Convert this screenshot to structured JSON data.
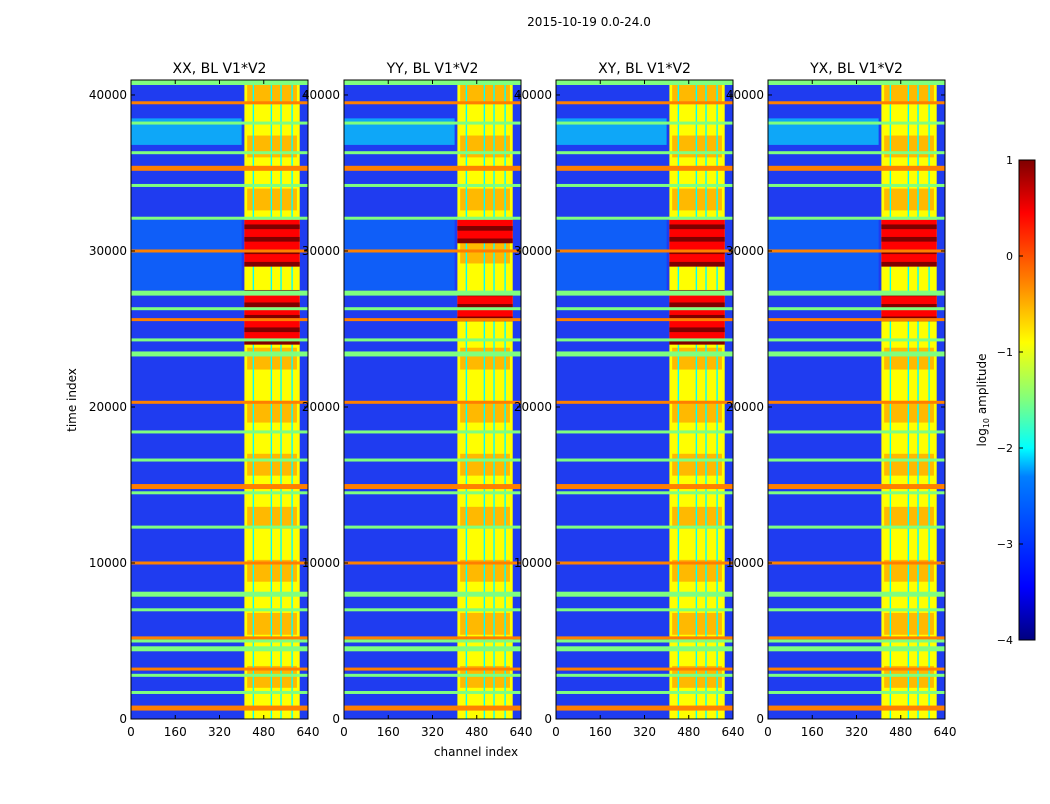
{
  "figure": {
    "suptitle": "2015-10-19 0.0-24.0",
    "ylabel": "time index",
    "xlabel": "channel index"
  },
  "colors": {
    "jet": [
      "#00007f",
      "#0000ff",
      "#007fff",
      "#00ffff",
      "#7fff7f",
      "#ffff00",
      "#ff7f00",
      "#ff0000",
      "#7f0000"
    ],
    "background": "#1f3cf0"
  },
  "chart_data": {
    "type": "heatmap",
    "shared": {
      "x_range": [
        0,
        640
      ],
      "y_range": [
        0,
        40960
      ],
      "x_ticks": [
        0,
        160,
        320,
        480,
        640
      ],
      "x_tick_labels": [
        "0",
        "160",
        "320",
        "480",
        "640"
      ],
      "y_ticks": [
        0,
        10000,
        20000,
        30000,
        40000
      ],
      "y_tick_labels": [
        "0",
        "10000",
        "20000",
        "30000",
        "40000"
      ],
      "bright_channel_band": [
        410,
        610
      ],
      "bright_channel_gaps": [
        [
          440,
          445
        ],
        [
          505,
          510
        ],
        [
          540,
          545
        ],
        [
          580,
          585
        ]
      ],
      "flagged_time_rows": [
        700,
        1700,
        2800,
        3200,
        4500,
        5000,
        5200,
        7000,
        8000,
        10000,
        12300,
        14500,
        14900,
        16600,
        18400,
        20300,
        23400,
        24300,
        25600,
        26300,
        27300,
        30000,
        32100,
        34200,
        35300,
        36300,
        38200,
        39500,
        40800
      ]
    },
    "panels": [
      {
        "title": "XX, BL V1*V2",
        "hot_time_ranges": [
          [
            24000,
            27400
          ],
          [
            29000,
            32000
          ]
        ]
      },
      {
        "title": "YY, BL V1*V2",
        "hot_time_ranges": [
          [
            25500,
            27400
          ],
          [
            30500,
            32000
          ]
        ]
      },
      {
        "title": "XY, BL V1*V2",
        "hot_time_ranges": [
          [
            24000,
            27400
          ],
          [
            29000,
            32000
          ]
        ]
      },
      {
        "title": "YX, BL V1*V2",
        "hot_time_ranges": [
          [
            25500,
            27400
          ],
          [
            29000,
            32000
          ]
        ]
      }
    ],
    "colorbar": {
      "label": "log$_{10}$ amplitude",
      "range": [
        -4,
        1
      ],
      "ticks": [
        1,
        0,
        -1,
        -2,
        -3,
        -4
      ],
      "tick_labels": [
        "1",
        "0",
        "−1",
        "−2",
        "−3",
        "−4"
      ]
    }
  }
}
